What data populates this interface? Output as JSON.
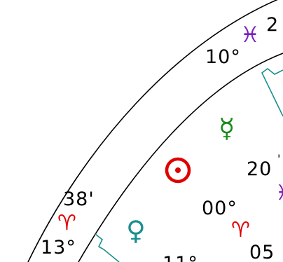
{
  "colors": {
    "background": "#ffffff",
    "ring": "#000000",
    "aspect_line": "#1a8f8f",
    "pisces": "#7a1fbf",
    "aries": "#e00000",
    "mercury": "#1a8a1a",
    "sun": "#e00000",
    "venus": "#1a8f8f",
    "text": "#000000"
  },
  "wheel": {
    "cusp_top_degree": "10°",
    "cusp_top_sign_icon": "pisces-icon",
    "cusp_top_sign_glyph": "♓",
    "cusp_top_minute_partial": "2",
    "cusp_left_minute": "38'",
    "cusp_left_sign_icon": "aries-icon",
    "cusp_left_sign_glyph": "♈",
    "cusp_left_degree": "13°"
  },
  "planets": {
    "mercury": {
      "icon": "mercury-icon",
      "glyph": "☿"
    },
    "sun": {
      "icon": "sun-icon",
      "glyph": "☉"
    },
    "venus": {
      "icon": "venus-icon",
      "glyph": "♀"
    }
  },
  "labels": {
    "right_degree_partial": "20",
    "sun_degree": "00°",
    "sun_sign_glyph": "♈",
    "sun_sign_icon": "aries-icon",
    "venus_degree_partial": "11°",
    "sun_minute_partial": "05",
    "right_sign_partial_glyph": "♓"
  }
}
